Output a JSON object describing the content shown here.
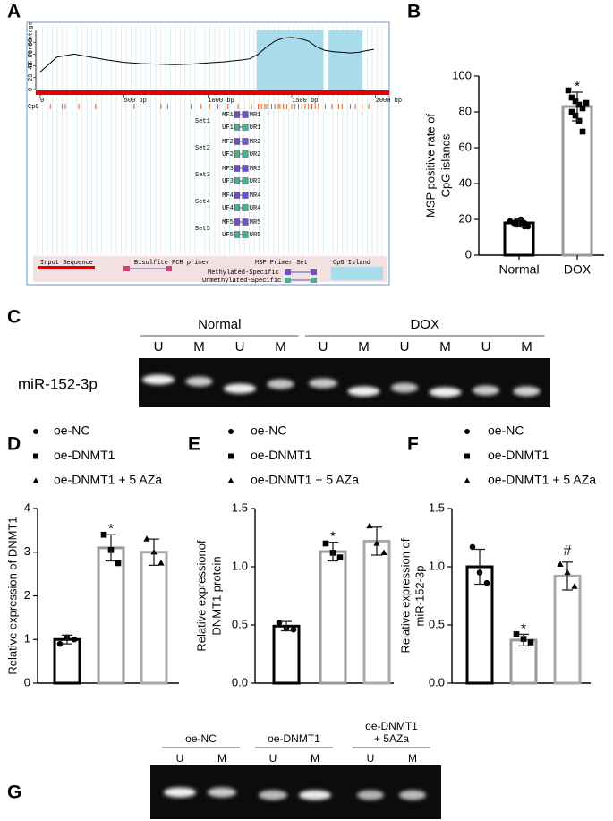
{
  "panel_labels": [
    "A",
    "B",
    "C",
    "D",
    "E",
    "F",
    "G"
  ],
  "chart_data": [
    {
      "type": "methprimer",
      "ylabel": "GC Percentage",
      "xlim": [
        0,
        2050
      ],
      "xticks": [
        0,
        {
          "value": 500,
          "label": "500 bp"
        },
        {
          "value": 1000,
          "label": "1000 bp"
        },
        {
          "value": 1500,
          "label": "1500 bp"
        },
        {
          "value": 2000,
          "label": "2000 bp"
        }
      ],
      "ylim": [
        0,
        100
      ],
      "yticks": [
        0,
        20,
        40,
        60,
        80
      ],
      "x": [
        0,
        100,
        200,
        300,
        400,
        500,
        600,
        700,
        800,
        900,
        1000,
        1100,
        1200,
        1250,
        1300,
        1350,
        1400,
        1450,
        1500,
        1550,
        1600,
        1650,
        1700,
        1750,
        1800,
        1850,
        1900,
        1950,
        1990
      ],
      "values": [
        30,
        55,
        60,
        55,
        50,
        46,
        44,
        43,
        42,
        43,
        45,
        47,
        50,
        52,
        60,
        72,
        82,
        87,
        88,
        86,
        82,
        72,
        66,
        64,
        63,
        62,
        63,
        66,
        68
      ],
      "color": "#000000",
      "islands": [
        [
          1290,
          1690
        ],
        [
          1720,
          1920
        ]
      ],
      "island_color": "#a9dcea",
      "cpg_label": "CpG",
      "cpg_sites": [
        60,
        130,
        150,
        230,
        330,
        560,
        720,
        760,
        900,
        960,
        1010,
        1060,
        1120,
        1180,
        1260,
        1300,
        1310,
        1320,
        1340,
        1350,
        1360,
        1380,
        1400,
        1420,
        1430,
        1450,
        1470,
        1500,
        1520,
        1540,
        1560,
        1580,
        1600,
        1620,
        1640,
        1660,
        1700,
        1740,
        1780,
        1800,
        1850,
        1880,
        1920,
        1960
      ],
      "primer_sets": [
        {
          "name": "Set1",
          "primers": [
            {
              "name": "MF1",
              "start": 1160,
              "end": 1190
            },
            {
              "name": "MR1",
              "start": 1205,
              "end": 1240
            },
            {
              "name": "UF1",
              "start": 1160,
              "end": 1190
            },
            {
              "name": "UR1",
              "start": 1205,
              "end": 1240
            }
          ]
        },
        {
          "name": "Set2",
          "primers": [
            {
              "name": "MF2",
              "start": 1160,
              "end": 1190
            },
            {
              "name": "MR2",
              "start": 1205,
              "end": 1240
            },
            {
              "name": "UF2",
              "start": 1160,
              "end": 1190
            },
            {
              "name": "UR2",
              "start": 1205,
              "end": 1240
            }
          ]
        },
        {
          "name": "Set3",
          "primers": [
            {
              "name": "MF3",
              "start": 1160,
              "end": 1190
            },
            {
              "name": "MR3",
              "start": 1205,
              "end": 1240
            },
            {
              "name": "UF3",
              "start": 1160,
              "end": 1190
            },
            {
              "name": "UR3",
              "start": 1205,
              "end": 1240
            }
          ]
        },
        {
          "name": "Set4",
          "primers": [
            {
              "name": "MF4",
              "start": 1160,
              "end": 1190
            },
            {
              "name": "MR4",
              "start": 1205,
              "end": 1240
            },
            {
              "name": "UF4",
              "start": 1160,
              "end": 1190
            },
            {
              "name": "UR4",
              "start": 1205,
              "end": 1240
            }
          ]
        },
        {
          "name": "Set5",
          "primers": [
            {
              "name": "MF5",
              "start": 1160,
              "end": 1190
            },
            {
              "name": "MR5",
              "start": 1205,
              "end": 1240
            },
            {
              "name": "UF5",
              "start": 1160,
              "end": 1190
            },
            {
              "name": "UR5",
              "start": 1205,
              "end": 1240
            }
          ]
        }
      ],
      "legend": [
        "Input Sequence",
        "Bisulfite PCR primer",
        "MSP Primer Set",
        "Methylated-Specific",
        "Unmethylated-Specific",
        "CpG Island"
      ]
    },
    {
      "type": "bar",
      "ylabel": [
        "MSP positive rate of",
        "CpG islands"
      ],
      "categories": [
        "Normal",
        "DOX"
      ],
      "values": [
        18,
        83
      ],
      "errors": [
        2,
        8
      ],
      "points": [
        [
          19,
          18,
          17,
          20,
          16,
          18,
          19,
          17,
          18,
          16
        ],
        [
          92,
          88,
          86,
          84,
          82,
          80,
          78,
          75,
          69,
          85
        ]
      ],
      "colors": [
        "#000000",
        "#999999"
      ],
      "markers": [
        "circle",
        "square"
      ],
      "ylim": [
        0,
        100
      ],
      "yticks": [
        0,
        20,
        40,
        60,
        80,
        100
      ],
      "annotations": [
        {
          "text": "*",
          "x": "DOX"
        }
      ]
    },
    {
      "type": "bar",
      "ylabel": [
        "Relative expression of DNMT1"
      ],
      "series": [
        {
          "name": "oe-NC",
          "color": "#000000",
          "marker": "circle",
          "values": [
            1.0
          ],
          "errors": [
            0.1
          ],
          "points": [
            0.9,
            1.05,
            1.0
          ]
        },
        {
          "name": "oe-DNMT1",
          "color": "#999999",
          "marker": "square",
          "values": [
            3.1
          ],
          "errors": [
            0.3
          ],
          "points": [
            3.4,
            3.05,
            2.75
          ]
        },
        {
          "name": "oe-DNMT1 + 5 AZa",
          "color": "#aaaaaa",
          "marker": "triangle",
          "values": [
            3.0
          ],
          "errors": [
            0.3
          ],
          "points": [
            3.3,
            3.0,
            2.75
          ]
        }
      ],
      "ylim": [
        0,
        4
      ],
      "yticks": [
        0,
        1,
        2,
        3,
        4
      ],
      "annotations": [
        {
          "text": "*",
          "x": "oe-DNMT1"
        }
      ]
    },
    {
      "type": "bar",
      "ylabel": [
        "Relative expressionof",
        "DNMT1 protein"
      ],
      "series": [
        {
          "name": "oe-NC",
          "color": "#000000",
          "marker": "circle",
          "values": [
            0.49
          ],
          "errors": [
            0.04
          ],
          "points": [
            0.52,
            0.47,
            0.46
          ]
        },
        {
          "name": "oe-DNMT1",
          "color": "#999999",
          "marker": "square",
          "values": [
            1.13
          ],
          "errors": [
            0.08
          ],
          "points": [
            1.2,
            1.12,
            1.08
          ]
        },
        {
          "name": "oe-DNMT1 + 5 AZa",
          "color": "#aaaaaa",
          "marker": "triangle",
          "values": [
            1.22
          ],
          "errors": [
            0.12
          ],
          "points": [
            1.35,
            1.2,
            1.12
          ]
        }
      ],
      "ylim": [
        0,
        1.5
      ],
      "yticks": [
        {
          "value": 0,
          "label": "0.0"
        },
        0.5,
        {
          "value": 1,
          "label": "1.0"
        },
        1.5
      ],
      "annotations": [
        {
          "text": "*",
          "x": "oe-DNMT1"
        }
      ]
    },
    {
      "type": "bar",
      "ylabel": [
        "Relative expression of",
        "miR-152-3p"
      ],
      "series": [
        {
          "name": "oe-NC",
          "color": "#000000",
          "marker": "circle",
          "values": [
            1.0
          ],
          "errors": [
            0.15
          ],
          "points": [
            1.17,
            0.95,
            0.86
          ]
        },
        {
          "name": "oe-DNMT1",
          "color": "#999999",
          "marker": "square",
          "values": [
            0.37
          ],
          "errors": [
            0.05
          ],
          "points": [
            0.42,
            0.38,
            0.35
          ]
        },
        {
          "name": "oe-DNMT1 + 5 AZa",
          "color": "#aaaaaa",
          "marker": "triangle",
          "values": [
            0.92
          ],
          "errors": [
            0.12
          ],
          "points": [
            1.02,
            0.95,
            0.83
          ]
        }
      ],
      "ylim": [
        0,
        1.5
      ],
      "yticks": [
        {
          "value": 0,
          "label": "0.0"
        },
        0.5,
        {
          "value": 1,
          "label": "1.0"
        },
        1.5
      ],
      "annotations": [
        {
          "text": "*",
          "x": "oe-DNMT1"
        },
        {
          "text": "#",
          "x": "oe-DNMT1 + 5 AZa"
        }
      ]
    }
  ],
  "gels": [
    {
      "label": "miR-152-3p",
      "groups": [
        {
          "name": [
            "Normal"
          ],
          "lanes": [
            "U",
            "M",
            "U",
            "M"
          ]
        },
        {
          "name": [
            "DOX"
          ],
          "lanes": [
            "U",
            "M",
            "U",
            "M",
            "U",
            "M"
          ]
        }
      ]
    },
    {
      "groups": [
        {
          "name": [
            "oe-NC"
          ],
          "lanes": [
            "U",
            "M"
          ]
        },
        {
          "name": [
            "oe-DNMT1"
          ],
          "lanes": [
            "U",
            "M"
          ]
        },
        {
          "name": [
            "oe-DNMT1",
            "+ 5AZa"
          ],
          "lanes": [
            "U",
            "M"
          ]
        }
      ]
    }
  ]
}
